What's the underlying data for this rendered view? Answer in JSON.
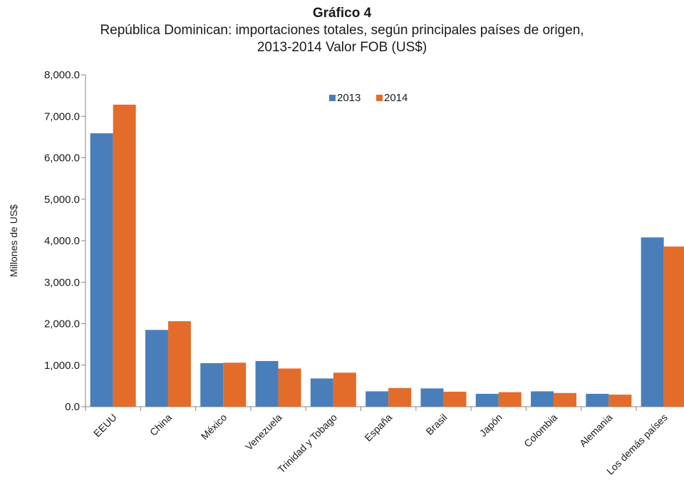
{
  "chart_data": {
    "type": "bar",
    "title": "Gráfico 4",
    "subtitle_line1": "República Dominican: importaciones totales, según principales países de origen,",
    "subtitle_line2": "2013-2014 Valor FOB (US$)",
    "xlabel": "",
    "ylabel": "Millones de US$",
    "ylim": [
      0,
      8000
    ],
    "yticks": [
      0,
      1000,
      2000,
      3000,
      4000,
      5000,
      6000,
      7000,
      8000
    ],
    "ytick_labels": [
      "0.0",
      "1,000.0",
      "2,000.0",
      "3,000.0",
      "4,000.0",
      "5,000.0",
      "6,000.0",
      "7,000.0",
      "8,000.0"
    ],
    "grid": false,
    "legend_position": "top-center",
    "categories": [
      "EEUU",
      "China",
      "México",
      "Venezuela",
      "Trinidad y Tobago",
      "España",
      "Brasil",
      "Japón",
      "Colombia",
      "Alemania",
      "Los demás países"
    ],
    "series": [
      {
        "name": "2013",
        "color": "#4a7ebb",
        "values": [
          6590,
          1850,
          1050,
          1100,
          680,
          370,
          440,
          310,
          370,
          310,
          4080
        ]
      },
      {
        "name": "2014",
        "color": "#e46c2a",
        "values": [
          7280,
          2060,
          1060,
          920,
          820,
          450,
          360,
          350,
          330,
          290,
          3860
        ]
      }
    ]
  }
}
